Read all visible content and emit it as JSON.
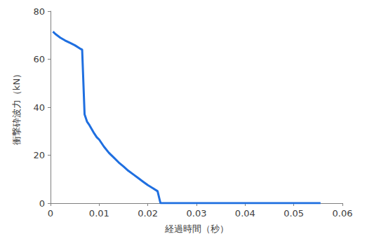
{
  "chart_data": {
    "type": "line",
    "x_label": "経過時間（秒）",
    "y_label": "衝撃砕波力（kN）",
    "x": [
      0.0005,
      0.001,
      0.002,
      0.003,
      0.004,
      0.005,
      0.006,
      0.0065,
      0.007,
      0.0075,
      0.008,
      0.009,
      0.0095,
      0.01,
      0.011,
      0.012,
      0.013,
      0.014,
      0.015,
      0.016,
      0.017,
      0.018,
      0.019,
      0.02,
      0.021,
      0.022,
      0.0226,
      0.03,
      0.04,
      0.05,
      0.0555
    ],
    "values": [
      71.5,
      70.5,
      69,
      67.8,
      66.8,
      65.8,
      64.5,
      64,
      37,
      34,
      32.5,
      29,
      27.5,
      26.5,
      23.5,
      21,
      19,
      17,
      15.3,
      13.5,
      12,
      10.5,
      9,
      7.5,
      6.3,
      5,
      0,
      0,
      0,
      0,
      0
    ],
    "color": "#1f6fe0",
    "xlim": [
      0,
      0.06
    ],
    "xticks": [
      0,
      0.01,
      0.02,
      0.03,
      0.04,
      0.05,
      0.06
    ],
    "ylim": [
      0,
      80
    ],
    "yticks": [
      0,
      20,
      40,
      60,
      80
    ],
    "grid": false
  }
}
